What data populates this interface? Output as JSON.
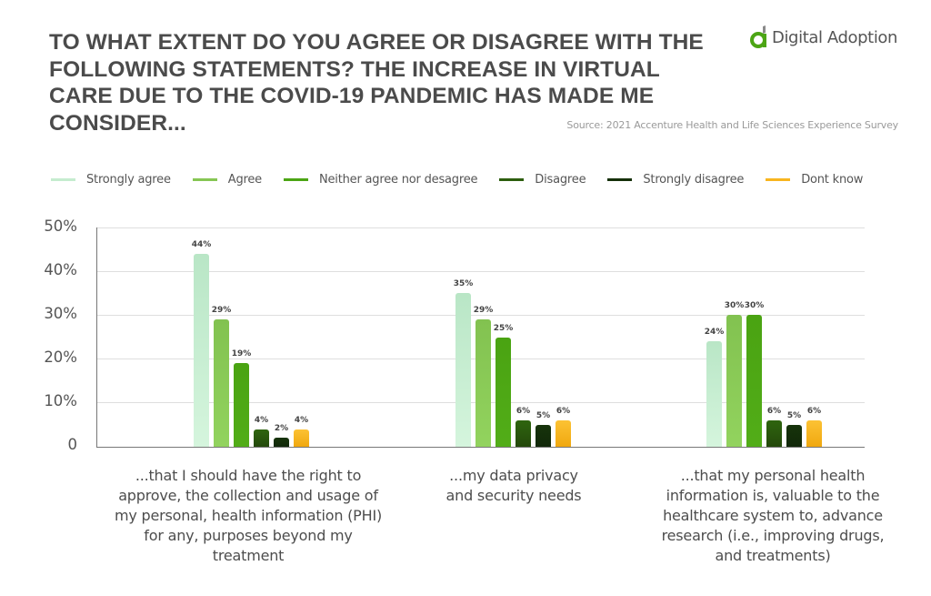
{
  "header": {
    "title": "TO WHAT EXTENT DO YOU AGREE OR DISAGREE WITH THE FOLLOWING STATEMENTS? THE INCREASE IN VIRTUAL CARE DUE TO THE COVID-19 PANDEMIC HAS MADE ME CONSIDER...",
    "logo_text": "Digital Adoption",
    "logo_icon": "digital-adoption-logo-icon",
    "source": "Source: 2021 Accenture Health and Life Sciences Experience Survey"
  },
  "colors": {
    "strongly_agree": "#c5eccf",
    "agree": "#86c653",
    "neither": "#4ca514",
    "disagree": "#2d5e0e",
    "strongly_disagree": "#15300a",
    "dont_know": "#f8b51f"
  },
  "chart_data": {
    "type": "bar",
    "title": "TO WHAT EXTENT DO YOU AGREE OR DISAGREE WITH THE FOLLOWING STATEMENTS? THE INCREASE IN VIRTUAL CARE DUE TO THE COVID-19 PANDEMIC HAS MADE ME CONSIDER...",
    "subtitle": "Source: 2021 Accenture Health and Life Sciences Experience Survey",
    "xlabel": "",
    "ylabel": "",
    "ylim": [
      0,
      50
    ],
    "yticks": [
      "0",
      "10%",
      "20%",
      "30%",
      "40%",
      "50%"
    ],
    "grid": true,
    "legend_position": "top",
    "categories": [
      "...that I should have the right to approve, the collection and usage of my personal, health information (PHI) for any, purposes beyond my treatment",
      "...my data privacy and security needs",
      "...that my personal health information is, valuable to the healthcare system to, advance research (i.e., improving drugs, and treatments)"
    ],
    "series": [
      {
        "name": "Strongly agree",
        "color": "#c5eccf",
        "values": [
          44,
          35,
          24
        ]
      },
      {
        "name": "Agree",
        "color": "#86c653",
        "values": [
          29,
          29,
          30
        ]
      },
      {
        "name": "Neither agree nor desagree",
        "color": "#4ca514",
        "values": [
          19,
          25,
          30
        ]
      },
      {
        "name": "Disagree",
        "color": "#2d5e0e",
        "values": [
          4,
          6,
          6
        ]
      },
      {
        "name": "Strongly disagree",
        "color": "#15300a",
        "values": [
          2,
          5,
          5
        ]
      },
      {
        "name": "Dont know",
        "color": "#f8b51f",
        "values": [
          4,
          6,
          6
        ]
      }
    ]
  },
  "legend": [
    {
      "label": "Strongly agree"
    },
    {
      "label": "Agree"
    },
    {
      "label": "Neither agree nor desagree"
    },
    {
      "label": "Disagree"
    },
    {
      "label": "Strongly disagree"
    },
    {
      "label": "Dont know"
    }
  ],
  "axis": {
    "y_ticks": [
      "50%",
      "40%",
      "30%",
      "20%",
      "10%",
      "0"
    ]
  },
  "bar_labels": {
    "g0": [
      "44%",
      "29%",
      "19%",
      "4%",
      "2%",
      "4%"
    ],
    "g1": [
      "35%",
      "29%",
      "25%",
      "6%",
      "5%",
      "6%"
    ],
    "g2": [
      "24%",
      "30%",
      "30%",
      "6%",
      "5%",
      "6%"
    ]
  },
  "categories": [
    {
      "label_lines": [
        "...that I should have the right to",
        "approve, the collection and usage of",
        "my personal, health information (PHI)",
        "for any, purposes beyond my",
        "treatment"
      ]
    },
    {
      "label_lines": [
        "...my data privacy",
        "and security needs"
      ]
    },
    {
      "label_lines": [
        "...that my personal health",
        "information is, valuable to the",
        "healthcare system to, advance",
        "research (i.e., improving drugs,",
        "and treatments)"
      ]
    }
  ]
}
